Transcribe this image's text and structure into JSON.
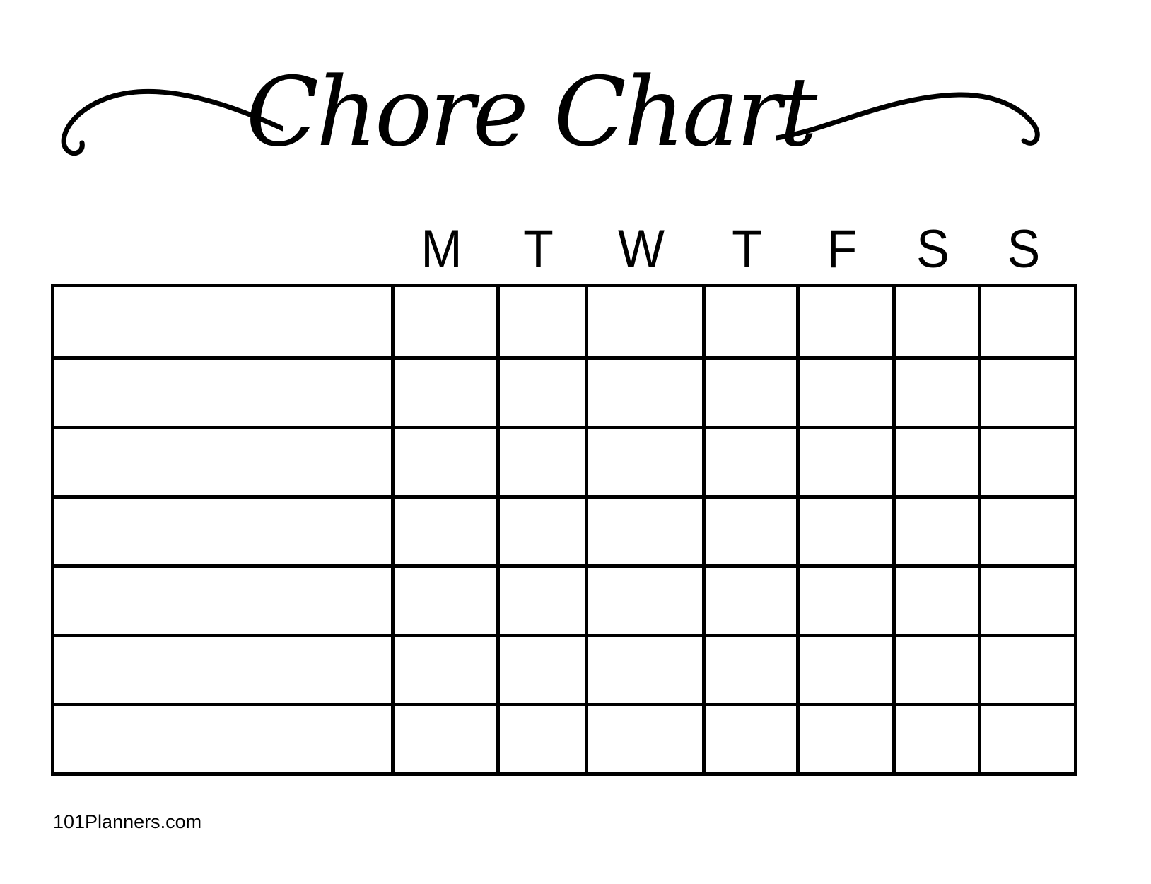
{
  "page": {
    "background_color": "#ffffff",
    "ink_color": "#000000"
  },
  "title": {
    "text": "Chore Chart"
  },
  "decorations": {
    "left_flourish": "calligraphic-swash-left",
    "right_flourish": "calligraphic-swash-right"
  },
  "week": {
    "days": [
      "M",
      "T",
      "W",
      "T",
      "F",
      "S",
      "S"
    ]
  },
  "grid": {
    "rows": 7,
    "columns_per_row": 8,
    "chore_name_column": "",
    "cell_values": ""
  },
  "footer": {
    "text": "101Planners.com"
  }
}
